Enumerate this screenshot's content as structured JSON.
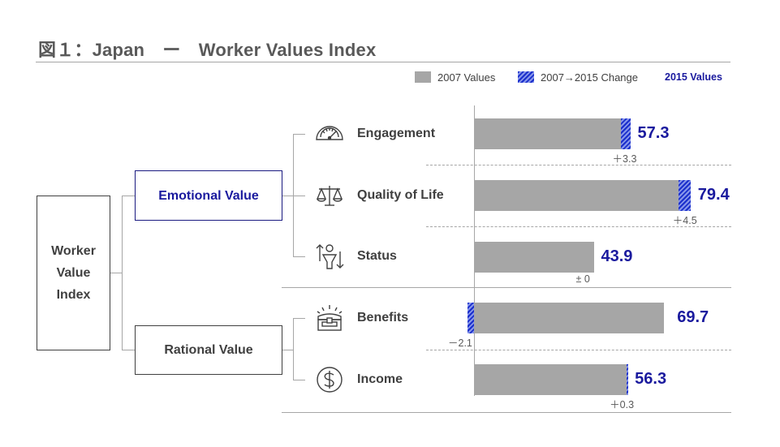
{
  "title": "図１：Japan　ー　Worker Values Index",
  "legend": {
    "base": "2007 Values",
    "change": "2007→2015 Change",
    "final": "2015 Values"
  },
  "colors": {
    "base": "#a6a6a6",
    "change": "#1b2fcc",
    "final_text": "#1a1a9e"
  },
  "tree": {
    "root": [
      "Worker",
      "Value",
      "Index"
    ],
    "emotional": "Emotional Value",
    "rational": "Rational Value"
  },
  "chart_data": {
    "type": "bar",
    "orientation": "horizontal",
    "categories": [
      "Engagement",
      "Quality of Life",
      "Status",
      "Benefits",
      "Income"
    ],
    "groups": [
      {
        "name": "Emotional Value",
        "categories": [
          "Engagement",
          "Quality of Life",
          "Status"
        ]
      },
      {
        "name": "Rational Value",
        "categories": [
          "Benefits",
          "Income"
        ]
      }
    ],
    "series": [
      {
        "values": [
          54.0,
          74.9,
          43.9,
          71.8,
          56.0
        ]
      },
      {
        "values": [
          3.3,
          4.5,
          0,
          -2.1,
          0.3
        ]
      },
      {
        "values": [
          57.3,
          79.4,
          43.9,
          69.7,
          56.3
        ]
      }
    ],
    "value_labels": [
      "57.3",
      "79.4",
      "43.9",
      "69.7",
      "56.3"
    ],
    "change_labels": [
      "＋3.3",
      "＋4.5",
      "± 0",
      "－2.1",
      "＋0.3"
    ],
    "icons": [
      "gauge-icon",
      "scales-icon",
      "status-arrows-icon",
      "treasure-chest-icon",
      "dollar-coin-icon"
    ],
    "xlim": [
      0,
      100
    ],
    "grid": false,
    "legend_position": "top-right"
  }
}
